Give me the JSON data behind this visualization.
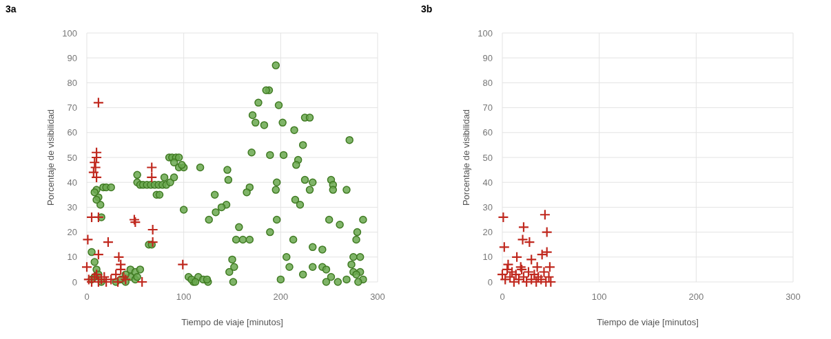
{
  "chart_data": [
    {
      "type": "scatter",
      "title": "3a",
      "xlabel": "Tiempo de viaje [minutos]",
      "ylabel": "Porcentaje de visibilidad",
      "xlim": [
        0,
        300
      ],
      "ylim": [
        0,
        100
      ],
      "xticks": [
        0,
        100,
        200,
        300
      ],
      "yticks": [
        0,
        10,
        20,
        30,
        40,
        50,
        60,
        70,
        80,
        90,
        100
      ],
      "grid": true,
      "series": [
        {
          "color": "#6aa84f",
          "marker": "circle",
          "x": [
            5,
            8,
            10,
            12,
            8,
            5,
            15,
            10,
            12,
            14,
            15,
            17,
            20,
            25,
            8,
            10,
            30,
            35,
            40,
            45,
            50,
            40,
            45,
            50,
            52,
            55,
            64,
            67,
            52,
            55,
            58,
            62,
            66,
            70,
            74,
            78,
            82,
            86,
            90,
            52,
            80,
            72,
            75,
            85,
            88,
            92,
            95,
            90,
            95,
            100,
            98,
            100,
            105,
            110,
            115,
            120,
            125,
            108,
            112,
            117,
            195,
            188,
            185,
            177,
            198,
            171,
            174,
            183,
            202,
            214,
            225,
            230,
            271,
            223,
            170,
            189,
            203,
            218,
            216,
            145,
            146,
            168,
            165,
            196,
            195,
            225,
            233,
            230,
            252,
            254,
            254,
            268,
            132,
            144,
            139,
            133,
            126,
            215,
            220,
            157,
            196,
            189,
            250,
            261,
            285,
            279,
            278,
            154,
            161,
            168,
            213,
            233,
            243,
            150,
            152,
            147,
            151,
            206,
            209,
            200,
            223,
            233,
            243,
            247,
            252,
            247,
            259,
            268,
            275,
            282,
            273,
            282,
            285,
            275,
            124,
            280,
            278
          ],
          "values": [
            12,
            8,
            5,
            3,
            2,
            1,
            0,
            37,
            34,
            31,
            26,
            38,
            38,
            38,
            36,
            33,
            0,
            1,
            0,
            2,
            1,
            3,
            5,
            4,
            2,
            5,
            15,
            15,
            40,
            39,
            39,
            39,
            39,
            39,
            39,
            39,
            39,
            40,
            42,
            43,
            42,
            35,
            35,
            50,
            50,
            50,
            50,
            48,
            46,
            46,
            47,
            29,
            2,
            0,
            2,
            1,
            0,
            1,
            0,
            46,
            87,
            77,
            77,
            72,
            71,
            67,
            64,
            63,
            64,
            61,
            66,
            66,
            57,
            55,
            52,
            51,
            51,
            49,
            47,
            45,
            41,
            38,
            36,
            40,
            37,
            41,
            40,
            37,
            41,
            39,
            37,
            37,
            35,
            31,
            30,
            28,
            25,
            33,
            31,
            22,
            25,
            20,
            25,
            23,
            25,
            20,
            17,
            17,
            17,
            17,
            17,
            14,
            13,
            9,
            6,
            4,
            0,
            10,
            6,
            1,
            3,
            6,
            6,
            5,
            2,
            0,
            0,
            1,
            10,
            10,
            7,
            4,
            1,
            4,
            1,
            0,
            3
          ]
        },
        {
          "color": "#c0281e",
          "marker": "cross",
          "x": [
            12,
            10,
            10,
            8,
            9,
            7,
            10,
            67,
            67,
            5,
            12,
            49,
            50,
            68,
            68,
            1,
            22,
            12,
            33,
            35,
            99,
            0,
            2,
            5,
            8,
            10,
            12,
            15,
            18,
            20,
            25,
            30,
            35,
            38,
            40,
            32,
            57
          ],
          "values": [
            72,
            52,
            50,
            48,
            46,
            44,
            42,
            46,
            42,
            26,
            26,
            25,
            24,
            21,
            16,
            17,
            16,
            11,
            10,
            7,
            7,
            6,
            1,
            0,
            2,
            3,
            0,
            1,
            2,
            0,
            1,
            3,
            5,
            2,
            1,
            0,
            0
          ]
        }
      ]
    },
    {
      "type": "scatter",
      "title": "3b",
      "xlabel": "Tiempo de viaje [minutos]",
      "ylabel": "Porcentaje de visibilidad",
      "xlim": [
        0,
        300
      ],
      "ylim": [
        0,
        100
      ],
      "xticks": [
        0,
        100,
        200,
        300
      ],
      "yticks": [
        0,
        10,
        20,
        30,
        40,
        50,
        60,
        70,
        80,
        90,
        100
      ],
      "grid": true,
      "series": [
        {
          "color": "#c0281e",
          "marker": "cross",
          "x": [
            1,
            44,
            22,
            46,
            2,
            21,
            28,
            46,
            41,
            15,
            49,
            30,
            0,
            3,
            5,
            8,
            10,
            12,
            14,
            17,
            19,
            22,
            25,
            27,
            30,
            33,
            35,
            37,
            40,
            43,
            45,
            48,
            50,
            6,
            20,
            36
          ],
          "values": [
            26,
            27,
            22,
            20,
            14,
            17,
            16,
            12,
            11,
            10,
            6,
            9,
            3,
            1,
            5,
            2,
            4,
            0,
            3,
            1,
            6,
            2,
            0,
            4,
            1,
            3,
            0,
            2,
            1,
            4,
            0,
            2,
            0,
            7,
            5,
            6
          ]
        }
      ]
    }
  ]
}
